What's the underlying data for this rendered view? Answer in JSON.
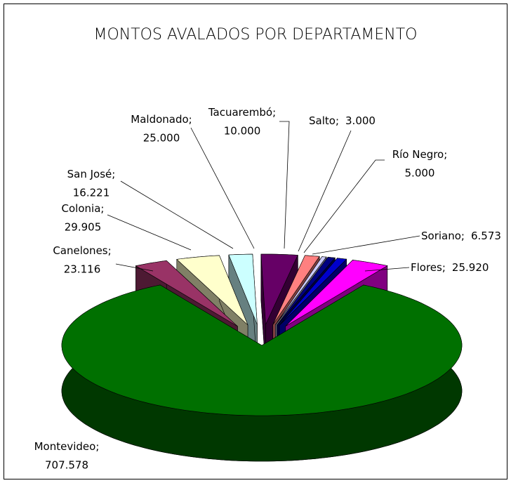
{
  "chart_data": {
    "type": "pie3d",
    "title": "MONTOS AVALADOS POR DEPARTAMENTO",
    "label_separator": ";",
    "categories": [
      "Montevideo",
      "Canelones",
      "Colonia",
      "San José",
      "Maldonado",
      "Tacuarembó",
      "Salto",
      "Río Negro",
      "Soriano",
      "Flores"
    ],
    "values": [
      707578,
      23116,
      29905,
      16221,
      25000,
      10000,
      3000,
      5000,
      6573,
      25920
    ],
    "value_labels": [
      "707.578",
      "23.116",
      "29.905",
      "16.221",
      "25.000",
      "10.000",
      "3.000",
      "5.000",
      "6.573",
      "25.920"
    ],
    "colors": [
      "#007000",
      "#993366",
      "#ffffcc",
      "#ccffff",
      "#660066",
      "#ff8080",
      "#ccccff",
      "#000080",
      "#0000cc",
      "#ff00ff"
    ]
  }
}
